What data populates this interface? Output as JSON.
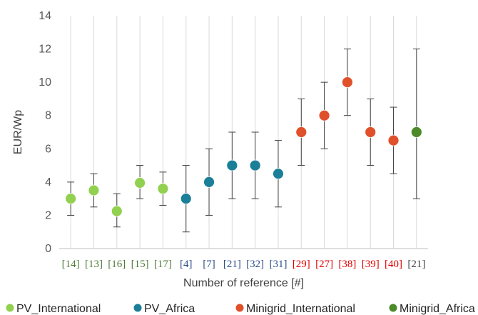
{
  "chart_data": {
    "type": "scatter",
    "title": "",
    "xlabel": "Number of reference [#]",
    "ylabel": "EUR/Wp",
    "ylim": [
      0,
      14
    ],
    "yticks": [
      0,
      2,
      4,
      6,
      8,
      10,
      12,
      14
    ],
    "grid": "vertical",
    "legend_position": "bottom",
    "categories": [
      "[14]",
      "[13]",
      "[16]",
      "[15]",
      "[17]",
      "[4]",
      "[7]",
      "[21]",
      "[32]",
      "[31]",
      "[29]",
      "[27]",
      "[38]",
      "[39]",
      "[40]",
      "[21]"
    ],
    "series": [
      {
        "name": "PV_International",
        "color": "#92d050",
        "label_color": "#4e7a3a",
        "points": [
          {
            "category": "[14]",
            "y": 3.0,
            "low": 2.0,
            "high": 4.0
          },
          {
            "category": "[13]",
            "y": 3.5,
            "low": 2.5,
            "high": 4.5
          },
          {
            "category": "[16]",
            "y": 2.25,
            "low": 1.3,
            "high": 3.3
          },
          {
            "category": "[15]",
            "y": 3.95,
            "low": 3.0,
            "high": 5.0
          },
          {
            "category": "[17]",
            "y": 3.6,
            "low": 2.6,
            "high": 4.6
          }
        ]
      },
      {
        "name": "PV_Africa",
        "color": "#1b7f97",
        "label_color": "#2e4f8a",
        "points": [
          {
            "category": "[4]",
            "y": 3.0,
            "low": 1.0,
            "high": 5.0
          },
          {
            "category": "[7]",
            "y": 4.0,
            "low": 2.0,
            "high": 6.0
          },
          {
            "category": "[21]",
            "y": 5.0,
            "low": 3.0,
            "high": 7.0
          },
          {
            "category": "[32]",
            "y": 5.0,
            "low": 3.0,
            "high": 7.0
          },
          {
            "category": "[31]",
            "y": 4.5,
            "low": 2.5,
            "high": 6.5
          }
        ]
      },
      {
        "name": "Minigrid_International",
        "color": "#e0502b",
        "label_color": "#e00000",
        "points": [
          {
            "category": "[29]",
            "y": 7.0,
            "low": 5.0,
            "high": 9.0
          },
          {
            "category": "[27]",
            "y": 8.0,
            "low": 6.0,
            "high": 10.0
          },
          {
            "category": "[38]",
            "y": 10.0,
            "low": 8.0,
            "high": 12.0
          },
          {
            "category": "[39]",
            "y": 7.0,
            "low": 5.0,
            "high": 9.0
          },
          {
            "category": "[40]",
            "y": 6.5,
            "low": 4.5,
            "high": 8.5
          }
        ]
      },
      {
        "name": "Minigrid_Africa",
        "color": "#4d8a2a",
        "label_color": "#404040",
        "points": [
          {
            "category": "[21]",
            "y": 7.0,
            "low": 3.0,
            "high": 12.0
          }
        ]
      }
    ]
  }
}
